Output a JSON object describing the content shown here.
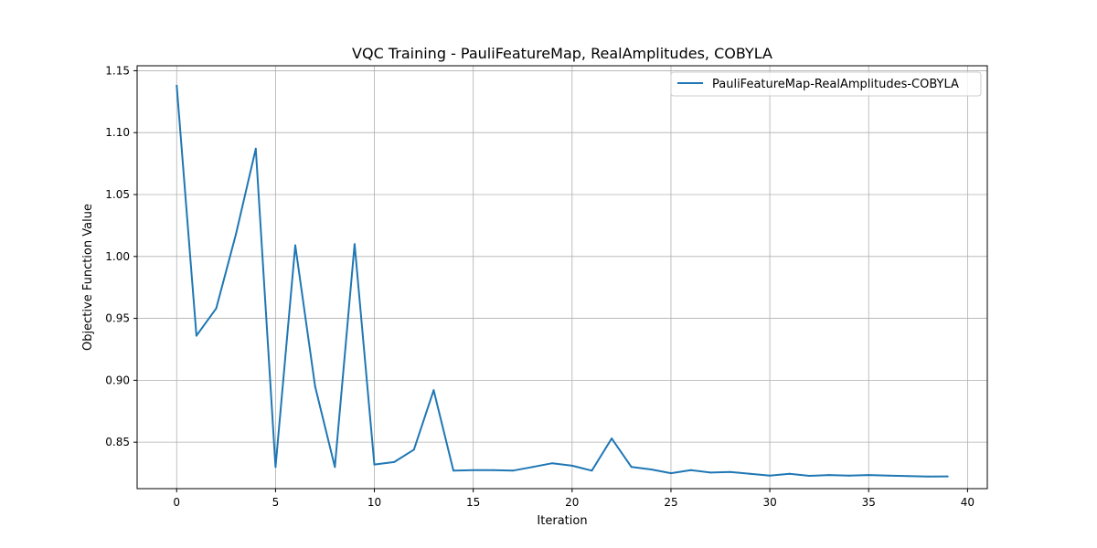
{
  "chart_data": {
    "type": "line",
    "title": "VQC Training - PauliFeatureMap, RealAmplitudes, COBYLA",
    "xlabel": "Iteration",
    "ylabel": "Objective Function Value",
    "xlim": [
      -2,
      41
    ],
    "ylim": [
      0.8125,
      1.154
    ],
    "xticks": [
      0,
      5,
      10,
      15,
      20,
      25,
      30,
      35,
      40
    ],
    "xtick_labels": [
      "0",
      "5",
      "10",
      "15",
      "20",
      "25",
      "30",
      "35",
      "40"
    ],
    "yticks": [
      0.85,
      0.9,
      0.95,
      1.0,
      1.05,
      1.1,
      1.15
    ],
    "ytick_labels": [
      "0.85",
      "0.90",
      "0.95",
      "1.00",
      "1.05",
      "1.10",
      "1.15"
    ],
    "grid": true,
    "legend_position": "upper right",
    "series": [
      {
        "name": "PauliFeatureMap-RealAmplitudes-COBYLA",
        "color": "#1f77b4",
        "x": [
          0,
          1,
          2,
          3,
          4,
          5,
          6,
          7,
          8,
          9,
          10,
          11,
          12,
          13,
          14,
          15,
          16,
          17,
          18,
          19,
          20,
          21,
          22,
          23,
          24,
          25,
          26,
          27,
          28,
          29,
          30,
          31,
          32,
          33,
          34,
          35,
          36,
          37,
          38,
          39
        ],
        "y": [
          1.138,
          0.936,
          0.958,
          1.018,
          1.087,
          0.83,
          1.009,
          0.895,
          0.83,
          1.01,
          0.832,
          0.834,
          0.844,
          0.892,
          0.827,
          0.8275,
          0.8275,
          0.827,
          0.83,
          0.833,
          0.831,
          0.827,
          0.853,
          0.83,
          0.828,
          0.825,
          0.8275,
          0.8255,
          0.826,
          0.8245,
          0.823,
          0.8245,
          0.8228,
          0.8235,
          0.823,
          0.8235,
          0.823,
          0.8226,
          0.8222,
          0.8224
        ]
      }
    ]
  }
}
